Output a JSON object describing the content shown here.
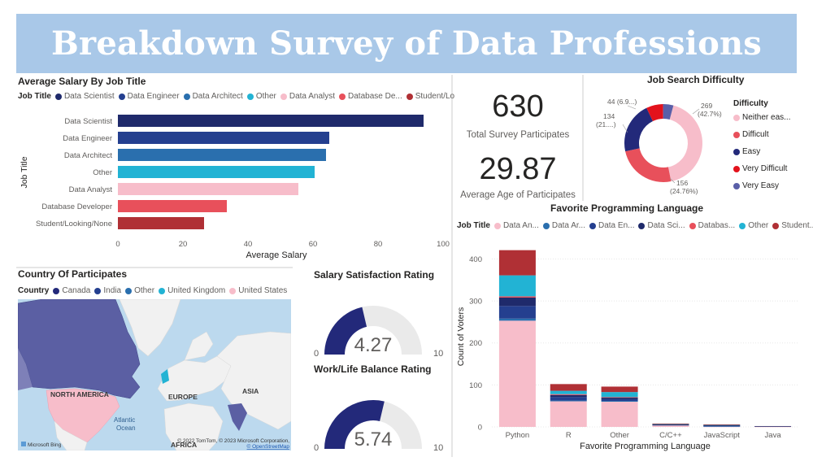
{
  "header": {
    "title": "Breakdown Survey of Data Professions"
  },
  "salary_chart": {
    "title": "Average Salary By Job Title",
    "legend_title": "Job Title",
    "legend": [
      {
        "label": "Data Scientist",
        "color": "#1f2a6b"
      },
      {
        "label": "Data Engineer",
        "color": "#243f8f"
      },
      {
        "label": "Data Architect",
        "color": "#2a6fae"
      },
      {
        "label": "Other",
        "color": "#22b3d4"
      },
      {
        "label": "Data Analyst",
        "color": "#f7bdca"
      },
      {
        "label": "Database De...",
        "color": "#e8505b"
      },
      {
        "label": "Student/Lo...",
        "color": "#b03035"
      }
    ],
    "ylabel": "Job Title",
    "xlabel": "Average Salary",
    "ticks": [
      "0",
      "20",
      "40",
      "60",
      "80",
      "100"
    ]
  },
  "kpis": {
    "participants": {
      "value": "630",
      "label": "Total Survey Participates"
    },
    "age": {
      "value": "29.87",
      "label": "Average Age of Participates"
    }
  },
  "difficulty_chart": {
    "title": "Job Search Difficulty",
    "legend_title": "Difficulty",
    "legend": [
      {
        "label": "Neither eas...",
        "color": "#f7bdca"
      },
      {
        "label": "Difficult",
        "color": "#e8505b"
      },
      {
        "label": "Easy",
        "color": "#23297a"
      },
      {
        "label": "Very Difficult",
        "color": "#e3121c"
      },
      {
        "label": "Very Easy",
        "color": "#5a5fa8"
      }
    ],
    "data_labels": [
      {
        "top": "269",
        "bottom": "(42.7%)"
      },
      {
        "top": "156",
        "bottom": "(24.76%)"
      },
      {
        "top": "134",
        "bottom": "(21....)"
      },
      {
        "top": "44 (6.9...)",
        "bottom": ""
      }
    ]
  },
  "map_panel": {
    "title": "Country Of Participates",
    "legend_title": "Country",
    "legend": [
      {
        "label": "Canada",
        "color": "#23297a"
      },
      {
        "label": "India",
        "color": "#243f8f"
      },
      {
        "label": "Other",
        "color": "#2a6fae"
      },
      {
        "label": "United Kingdom",
        "color": "#22b3d4"
      },
      {
        "label": "United States",
        "color": "#f7bdca"
      }
    ],
    "labels": {
      "north_america": "NORTH AMERICA",
      "europe": "EUROPE",
      "asia": "ASIA",
      "atlantic": "Atlantic",
      "ocean": "Ocean",
      "africa": "AFRICA"
    },
    "copyright": "© 2022 TomTom, © 2023 Microsoft Corporation,",
    "osm": "© OpenStreetMap",
    "bing": "Microsoft Bing"
  },
  "gauges": {
    "salary": {
      "title": "Salary Satisfaction Rating",
      "value": "4.27",
      "min": "0",
      "max": "10"
    },
    "worklife": {
      "title": "Work/Life Balance Rating",
      "value": "5.74",
      "min": "0",
      "max": "10"
    }
  },
  "language_chart": {
    "title": "Favorite Programming Language",
    "legend_title": "Job Title",
    "legend": [
      {
        "label": "Data An...",
        "color": "#f7bdca"
      },
      {
        "label": "Data Ar...",
        "color": "#2a6fae"
      },
      {
        "label": "Data En...",
        "color": "#243f8f"
      },
      {
        "label": "Data Sci...",
        "color": "#1f2a6b"
      },
      {
        "label": "Databas...",
        "color": "#e8505b"
      },
      {
        "label": "Other",
        "color": "#22b3d4"
      },
      {
        "label": "Student...",
        "color": "#b03035"
      }
    ],
    "ylabel": "Count of Voters",
    "xlabel": "Favorite Programming Language",
    "yticks": [
      "0",
      "100",
      "200",
      "300",
      "400"
    ]
  },
  "chart_data": [
    {
      "type": "bar",
      "orientation": "horizontal",
      "title": "Average Salary By Job Title",
      "xlabel": "Average Salary",
      "ylabel": "Job Title",
      "categories": [
        "Data Scientist",
        "Data Engineer",
        "Data Architect",
        "Other",
        "Data Analyst",
        "Database Developer",
        "Student/Looking/None"
      ],
      "values": [
        94,
        65,
        64,
        60.5,
        55.5,
        33.5,
        26.5
      ],
      "colors": [
        "#1f2a6b",
        "#243f8f",
        "#2a6fae",
        "#22b3d4",
        "#f7bdca",
        "#e8505b",
        "#b03035"
      ],
      "xlim": [
        0,
        100
      ],
      "grid": false,
      "legend": "top"
    },
    {
      "type": "pie",
      "title": "Job Search Difficulty",
      "categories": [
        "Neither easy nor difficult",
        "Difficult",
        "Easy",
        "Very Difficult",
        "Very Easy"
      ],
      "values": [
        269,
        156,
        134,
        44,
        27
      ],
      "colors": [
        "#f7bdca",
        "#e8505b",
        "#23297a",
        "#e3121c",
        "#5a5fa8"
      ],
      "legend": "right"
    },
    {
      "type": "bar",
      "stacked": true,
      "title": "Favorite Programming Language",
      "xlabel": "Favorite Programming Language",
      "ylabel": "Count of Voters",
      "categories": [
        "Python",
        "R",
        "Other",
        "C/C++",
        "JavaScript",
        "Java"
      ],
      "ylim": [
        0,
        430
      ],
      "legend": "top",
      "series": [
        {
          "name": "Data An...",
          "color": "#f7bdca",
          "values": [
            253,
            61,
            60,
            4,
            1,
            1
          ]
        },
        {
          "name": "Data Ar...",
          "color": "#2a6fae",
          "values": [
            5,
            2,
            2,
            0,
            1,
            0
          ]
        },
        {
          "name": "Data En...",
          "color": "#243f8f",
          "values": [
            30,
            8,
            4,
            1,
            1,
            0
          ]
        },
        {
          "name": "Data Sci...",
          "color": "#1f2a6b",
          "values": [
            20,
            5,
            4,
            1,
            1,
            1
          ]
        },
        {
          "name": "Databas...",
          "color": "#e8505b",
          "values": [
            3,
            2,
            1,
            0,
            0,
            0
          ]
        },
        {
          "name": "Other",
          "color": "#22b3d4",
          "values": [
            50,
            8,
            12,
            1,
            1,
            0
          ]
        },
        {
          "name": "Student...",
          "color": "#b03035",
          "values": [
            60,
            16,
            13,
            1,
            1,
            0
          ]
        }
      ]
    },
    {
      "type": "gauge",
      "title": "Salary Satisfaction Rating",
      "value": 4.27,
      "min": 0,
      "max": 10
    },
    {
      "type": "gauge",
      "title": "Work/Life Balance Rating",
      "value": 5.74,
      "min": 0,
      "max": 10
    }
  ]
}
